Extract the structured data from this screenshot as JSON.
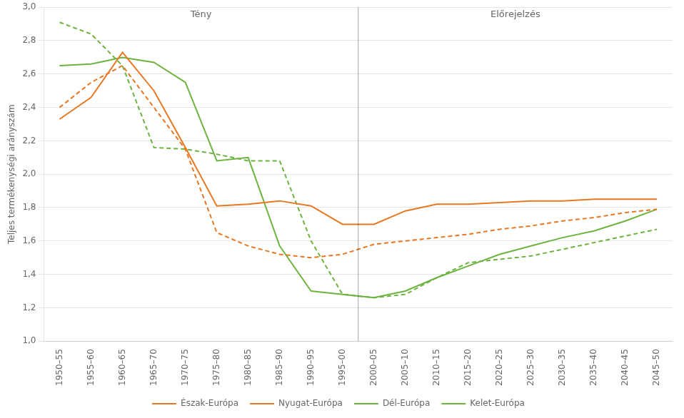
{
  "chart_data": {
    "type": "line",
    "y_label": "Teljes termékenységi arányszám",
    "categories": [
      "1950–55",
      "1955–60",
      "1960–65",
      "1965–70",
      "1970–75",
      "1975–80",
      "1980–85",
      "1985–90",
      "1990–95",
      "1995–00",
      "2000–05",
      "2005–10",
      "2010–15",
      "2015–20",
      "2020–25",
      "2025–30",
      "2030–35",
      "2035–40",
      "2040–45",
      "2045–50"
    ],
    "series": [
      {
        "name": "Észak-Európa",
        "color": "#E87722",
        "line_style": "solid",
        "values": [
          2.33,
          2.46,
          2.73,
          2.5,
          2.16,
          1.81,
          1.82,
          1.84,
          1.81,
          1.7,
          1.7,
          1.78,
          1.82,
          1.82,
          1.83,
          1.84,
          1.84,
          1.85,
          1.85,
          1.85
        ]
      },
      {
        "name": "Nyugat-Európa",
        "color": "#E87722",
        "line_style": "dashed",
        "values": [
          2.4,
          2.55,
          2.65,
          2.4,
          2.15,
          1.65,
          1.57,
          1.52,
          1.5,
          1.52,
          1.58,
          1.6,
          1.62,
          1.64,
          1.67,
          1.69,
          1.72,
          1.74,
          1.77,
          1.79
        ]
      },
      {
        "name": "Dél-Európa",
        "color": "#6DB33F",
        "line_style": "solid",
        "values": [
          2.65,
          2.66,
          2.7,
          2.67,
          2.55,
          2.08,
          2.1,
          1.57,
          1.3,
          1.28,
          1.26,
          1.3,
          1.38,
          1.45,
          1.52,
          1.57,
          1.62,
          1.66,
          1.72,
          1.79
        ]
      },
      {
        "name": "Kelet-Európa",
        "color": "#6DB33F",
        "line_style": "dashed",
        "values": [
          2.91,
          2.84,
          2.65,
          2.16,
          2.15,
          2.12,
          2.08,
          2.08,
          1.6,
          1.28,
          1.26,
          1.28,
          1.38,
          1.47,
          1.49,
          1.51,
          1.55,
          1.59,
          1.63,
          1.67
        ]
      }
    ],
    "annotations": [
      {
        "text": "Tény",
        "from": "1950–55",
        "to": "1995–00"
      },
      {
        "text": "Előrejelzés",
        "from": "2000–05",
        "to": "2045–50"
      }
    ],
    "ylim": [
      1.0,
      3.0
    ],
    "yticks": [
      {
        "value": 1.0,
        "label": "1,0"
      },
      {
        "value": 1.2,
        "label": "1,2"
      },
      {
        "value": 1.4,
        "label": "1,4"
      },
      {
        "value": 1.6,
        "label": "1,6"
      },
      {
        "value": 1.8,
        "label": "1,8"
      },
      {
        "value": 2.0,
        "label": "2,0"
      },
      {
        "value": 2.2,
        "label": "2,2"
      },
      {
        "value": 2.4,
        "label": "2,4"
      },
      {
        "value": 2.6,
        "label": "2,6"
      },
      {
        "value": 2.8,
        "label": "2,8"
      },
      {
        "value": 3.0,
        "label": "3,0"
      }
    ],
    "grid": true,
    "legend": "bottom"
  }
}
